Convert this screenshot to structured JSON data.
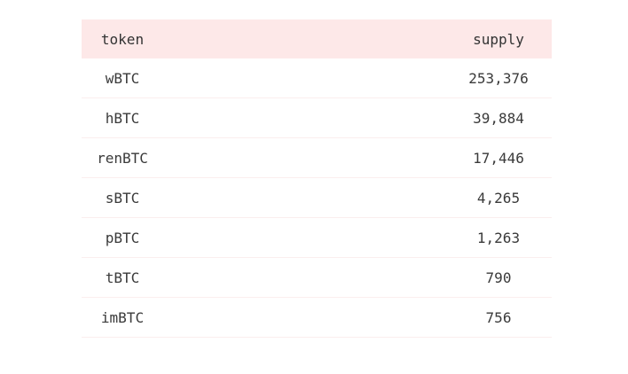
{
  "table": {
    "columns": [
      "token",
      "supply"
    ],
    "rows": [
      [
        "wBTC",
        "253,376"
      ],
      [
        "hBTC",
        "39,884"
      ],
      [
        "renBTC",
        "17,446"
      ],
      [
        "sBTC",
        "4,265"
      ],
      [
        "pBTC",
        "1,263"
      ],
      [
        "tBTC",
        "790"
      ],
      [
        "imBTC",
        "756"
      ]
    ]
  },
  "colors": {
    "header_bg": "#fde8e8"
  }
}
